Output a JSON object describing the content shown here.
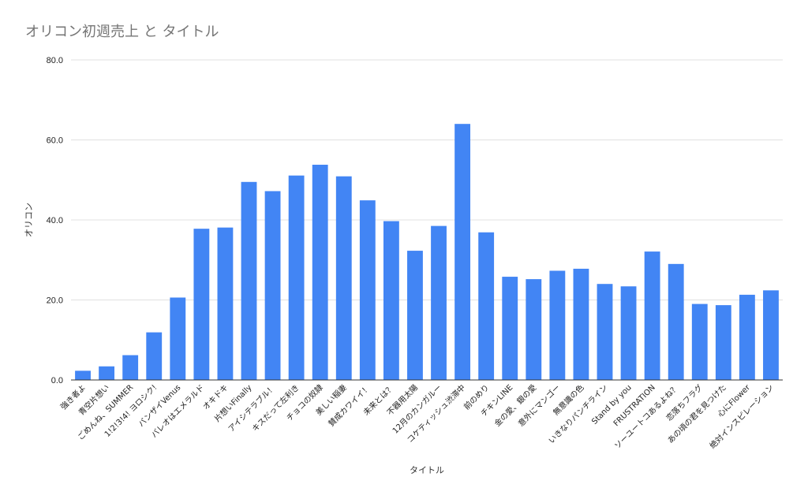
{
  "chart_data": {
    "type": "bar",
    "title": "オリコン初週売上 と タイトル",
    "xlabel": "タイトル",
    "ylabel": "オリコン",
    "ylim": [
      0,
      80
    ],
    "yticks": [
      "0.0",
      "20.0",
      "40.0",
      "60.0",
      "80.0"
    ],
    "grid": true,
    "legend": "none",
    "bar_color": "#4285f4",
    "categories": [
      "強き者よ",
      "青空片想い",
      "ごめんね、SUMMER",
      "1!2!3!4! ヨロシク!",
      "バンザイVenus",
      "バレオはエメラルド",
      "オキドキ",
      "片想いFinally",
      "アイシテラブル！",
      "キスだって左利き",
      "チョコの奴隷",
      "美しい稲妻",
      "賛成カワイイ！",
      "未来とは？",
      "不器用太陽",
      "12月のカンガルー",
      "コケティッシュ渋滞中",
      "前のめり",
      "チキンLINE",
      "金の愛、銀の愛",
      "意外にマンゴー",
      "無意識の色",
      "いきなりパンチライン",
      "Stand by you",
      "FRUSTRATION",
      "ソーユートコあるよね？",
      "恋落ちフラグ",
      "あの頃の君を見つけた",
      "心にFlower",
      "絶対インスピレーション"
    ],
    "values": [
      2.3,
      3.4,
      6.2,
      11.9,
      20.6,
      37.8,
      38.1,
      49.5,
      47.2,
      51.1,
      53.8,
      50.9,
      44.9,
      39.7,
      32.3,
      38.5,
      64.0,
      36.9,
      25.8,
      25.2,
      27.3,
      27.8,
      24.0,
      23.4,
      32.1,
      29.0,
      19.0,
      18.7,
      21.3,
      22.4
    ]
  }
}
